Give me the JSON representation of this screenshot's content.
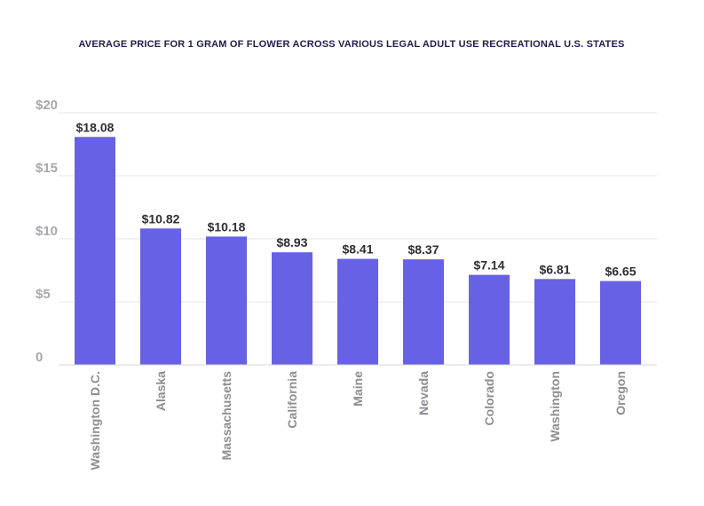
{
  "chart_data": {
    "type": "bar",
    "title": "AVERAGE PRICE FOR 1 GRAM OF FLOWER ACROSS VARIOUS LEGAL ADULT USE RECREATIONAL U.S. STATES",
    "categories": [
      "Washington D.C.",
      "Alaska",
      "Massachusetts",
      "California",
      "Maine",
      "Nevada",
      "Colorado",
      "Washington",
      "Oregon"
    ],
    "values": [
      18.08,
      10.82,
      10.18,
      8.93,
      8.41,
      8.37,
      7.14,
      6.81,
      6.65
    ],
    "data_labels": [
      "$18.08",
      "$10.82",
      "$10.18",
      "$8.93",
      "$8.41",
      "$8.37",
      "$7.14",
      "$6.81",
      "$6.65"
    ],
    "xlabel": "",
    "ylabel": "",
    "ylim": [
      0,
      20
    ],
    "y_ticks": [
      0,
      5,
      10,
      15,
      20
    ],
    "y_tick_labels": [
      "0",
      "$5",
      "$10",
      "$15",
      "$20"
    ],
    "grid": true,
    "x_label_rotation": "vertical",
    "colors": {
      "bar": "#6761e6",
      "title": "#1f1d4a",
      "gridline": "#e6e6e6",
      "tick_label": "#a7a7ad",
      "category_label": "#8d8d93",
      "data_label": "#2e2e34"
    }
  }
}
